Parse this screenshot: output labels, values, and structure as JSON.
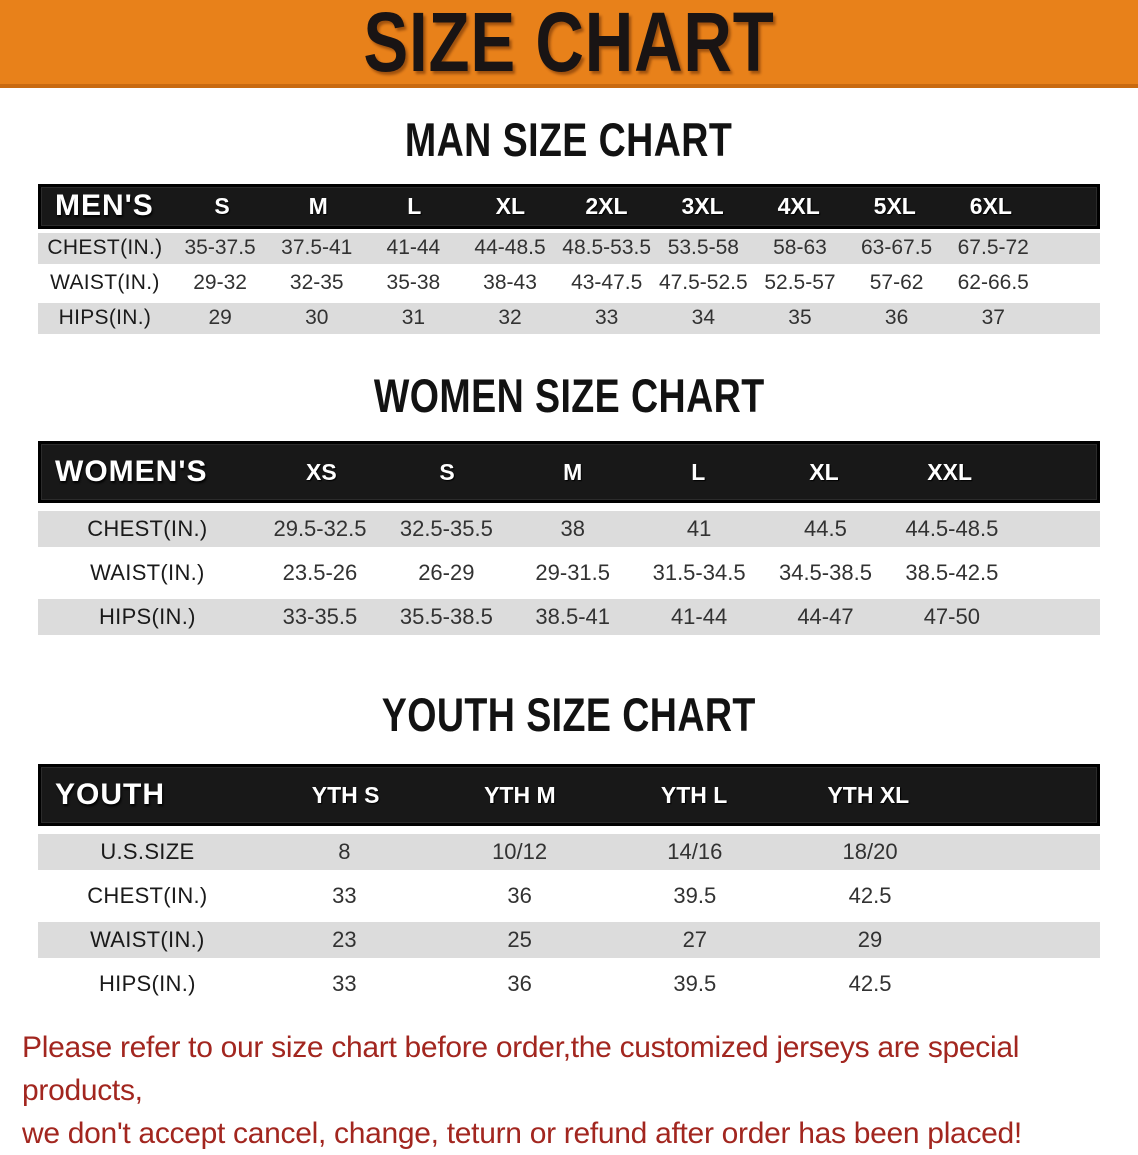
{
  "banner": {
    "title": "SIZE CHART"
  },
  "colors": {
    "banner_bg": "#e8811a",
    "table_header_bg": "#181818",
    "row_band": "#dcdcdc",
    "disclaimer_text": "#a2261f",
    "heading_text": "#121212"
  },
  "sections": [
    {
      "heading": "MAN SIZE CHART",
      "table": {
        "corner": "MEN'S",
        "columns": [
          "S",
          "M",
          "L",
          "XL",
          "2XL",
          "3XL",
          "4XL",
          "5XL",
          "6XL"
        ],
        "rows": [
          {
            "label": "CHEST(IN.)",
            "values": [
              "35-37.5",
              "37.5-41",
              "41-44",
              "44-48.5",
              "48.5-53.5",
              "53.5-58",
              "58-63",
              "63-67.5",
              "67.5-72"
            ]
          },
          {
            "label": "WAIST(IN.)",
            "values": [
              "29-32",
              "32-35",
              "35-38",
              "38-43",
              "43-47.5",
              "47.5-52.5",
              "52.5-57",
              "57-62",
              "62-66.5"
            ]
          },
          {
            "label": "HIPS(IN.)",
            "values": [
              "29",
              "30",
              "31",
              "32",
              "33",
              "34",
              "35",
              "36",
              "37"
            ]
          }
        ]
      }
    },
    {
      "heading": "WOMEN SIZE CHART",
      "table": {
        "corner": "WOMEN'S",
        "columns": [
          "XS",
          "S",
          "M",
          "L",
          "XL",
          "XXL"
        ],
        "rows": [
          {
            "label": "CHEST(IN.)",
            "values": [
              "29.5-32.5",
              "32.5-35.5",
              "38",
              "41",
              "44.5",
              "44.5-48.5"
            ]
          },
          {
            "label": "WAIST(IN.)",
            "values": [
              "23.5-26",
              "26-29",
              "29-31.5",
              "31.5-34.5",
              "34.5-38.5",
              "38.5-42.5"
            ]
          },
          {
            "label": "HIPS(IN.)",
            "values": [
              "33-35.5",
              "35.5-38.5",
              "38.5-41",
              "41-44",
              "44-47",
              "47-50"
            ]
          }
        ]
      }
    },
    {
      "heading": "YOUTH SIZE CHART",
      "table": {
        "corner": "YOUTH",
        "columns": [
          "YTH S",
          "YTH M",
          "YTH L",
          "YTH XL"
        ],
        "rows": [
          {
            "label": "U.S.SIZE",
            "values": [
              "8",
              "10/12",
              "14/16",
              "18/20"
            ]
          },
          {
            "label": "CHEST(IN.)",
            "values": [
              "33",
              "36",
              "39.5",
              "42.5"
            ]
          },
          {
            "label": "WAIST(IN.)",
            "values": [
              "23",
              "25",
              "27",
              "29"
            ]
          },
          {
            "label": "HIPS(IN.)",
            "values": [
              "33",
              "36",
              "39.5",
              "42.5"
            ]
          }
        ]
      }
    }
  ],
  "disclaimer": {
    "line1": "Please refer to our size chart before order,the customized jerseys are special products,",
    "line2": "we don't accept cancel, change, teturn or refund after order has been placed!"
  }
}
